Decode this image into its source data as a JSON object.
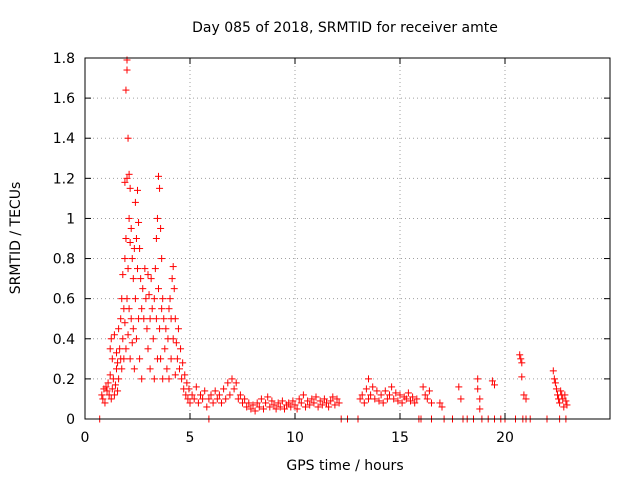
{
  "chart_data": {
    "type": "scatter",
    "title": "Day 085 of 2018, SRMTID for receiver amte",
    "xlabel": "GPS time / hours",
    "ylabel": "SRMTID / TECUs",
    "xlim": [
      0,
      25
    ],
    "ylim": [
      0,
      1.8
    ],
    "xticks": [
      0,
      5,
      10,
      15,
      20
    ],
    "yticks": [
      0,
      0.2,
      0.4,
      0.6,
      0.8,
      1,
      1.2,
      1.4,
      1.6,
      1.8
    ],
    "xtick_labels": [
      "0",
      "5",
      "10",
      "15",
      "20"
    ],
    "ytick_labels": [
      "0",
      "0.2",
      "0.4",
      "0.6",
      "0.8",
      "1",
      "1.2",
      "1.4",
      "1.6",
      "1.8"
    ],
    "grid": true,
    "marker": "+",
    "color": "#ff0000",
    "series": [
      {
        "name": "SRMTID",
        "points": [
          [
            0.7,
            0.0
          ],
          [
            0.8,
            0.12
          ],
          [
            0.85,
            0.1
          ],
          [
            0.9,
            0.15
          ],
          [
            0.95,
            0.08
          ],
          [
            1.0,
            0.16
          ],
          [
            1.05,
            0.14
          ],
          [
            1.1,
            0.18
          ],
          [
            1.15,
            0.12
          ],
          [
            1.2,
            0.22
          ],
          [
            1.25,
            0.1
          ],
          [
            1.3,
            0.15
          ],
          [
            1.35,
            0.2
          ],
          [
            1.4,
            0.12
          ],
          [
            1.45,
            0.17
          ],
          [
            1.5,
            0.25
          ],
          [
            1.55,
            0.14
          ],
          [
            1.2,
            0.35
          ],
          [
            1.25,
            0.4
          ],
          [
            1.3,
            0.3
          ],
          [
            1.4,
            0.42
          ],
          [
            1.5,
            0.33
          ],
          [
            1.55,
            0.28
          ],
          [
            1.6,
            0.45
          ],
          [
            1.6,
            0.2
          ],
          [
            1.65,
            0.35
          ],
          [
            1.7,
            0.5
          ],
          [
            1.7,
            0.3
          ],
          [
            1.75,
            0.6
          ],
          [
            1.75,
            0.25
          ],
          [
            1.8,
            0.72
          ],
          [
            1.8,
            0.4
          ],
          [
            1.85,
            0.55
          ],
          [
            1.85,
            0.3
          ],
          [
            1.9,
            1.18
          ],
          [
            1.9,
            0.8
          ],
          [
            1.9,
            0.48
          ],
          [
            1.95,
            1.64
          ],
          [
            1.95,
            0.9
          ],
          [
            1.95,
            0.35
          ],
          [
            2.0,
            1.79
          ],
          [
            2.0,
            1.74
          ],
          [
            2.0,
            1.2
          ],
          [
            2.0,
            0.6
          ],
          [
            2.05,
            1.4
          ],
          [
            2.05,
            0.75
          ],
          [
            2.05,
            0.42
          ],
          [
            2.1,
            1.22
          ],
          [
            2.1,
            1.0
          ],
          [
            2.1,
            0.55
          ],
          [
            2.15,
            1.15
          ],
          [
            2.15,
            0.88
          ],
          [
            2.15,
            0.3
          ],
          [
            2.2,
            0.95
          ],
          [
            2.2,
            0.5
          ],
          [
            2.25,
            0.8
          ],
          [
            2.25,
            0.38
          ],
          [
            2.3,
            0.7
          ],
          [
            2.3,
            0.45
          ],
          [
            2.35,
            0.85
          ],
          [
            2.35,
            0.25
          ],
          [
            2.4,
            1.08
          ],
          [
            2.4,
            0.6
          ],
          [
            2.45,
            0.9
          ],
          [
            2.45,
            0.4
          ],
          [
            2.5,
            1.14
          ],
          [
            2.5,
            0.75
          ],
          [
            2.55,
            0.98
          ],
          [
            2.55,
            0.5
          ],
          [
            2.6,
            0.85
          ],
          [
            2.6,
            0.3
          ],
          [
            2.65,
            0.7
          ],
          [
            2.7,
            0.55
          ],
          [
            2.7,
            0.2
          ],
          [
            2.75,
            0.65
          ],
          [
            2.8,
            0.5
          ],
          [
            2.85,
            0.75
          ],
          [
            2.9,
            0.6
          ],
          [
            2.95,
            0.45
          ],
          [
            3.0,
            0.72
          ],
          [
            3.0,
            0.35
          ],
          [
            3.05,
            0.62
          ],
          [
            3.1,
            0.5
          ],
          [
            3.1,
            0.25
          ],
          [
            3.15,
            0.7
          ],
          [
            3.2,
            0.55
          ],
          [
            3.25,
            0.4
          ],
          [
            3.3,
            0.6
          ],
          [
            3.3,
            0.2
          ],
          [
            3.35,
            0.75
          ],
          [
            3.4,
            0.9
          ],
          [
            3.4,
            0.5
          ],
          [
            3.45,
            1.0
          ],
          [
            3.45,
            0.3
          ],
          [
            3.5,
            1.21
          ],
          [
            3.5,
            0.65
          ],
          [
            3.55,
            1.15
          ],
          [
            3.55,
            0.45
          ],
          [
            3.6,
            0.95
          ],
          [
            3.6,
            0.3
          ],
          [
            3.65,
            0.8
          ],
          [
            3.65,
            0.55
          ],
          [
            3.7,
            0.6
          ],
          [
            3.7,
            0.2
          ],
          [
            3.75,
            0.5
          ],
          [
            3.8,
            0.35
          ],
          [
            3.85,
            0.45
          ],
          [
            3.9,
            0.25
          ],
          [
            3.95,
            0.4
          ],
          [
            4.0,
            0.55
          ],
          [
            4.0,
            0.2
          ],
          [
            4.05,
            0.6
          ],
          [
            4.1,
            0.5
          ],
          [
            4.1,
            0.3
          ],
          [
            4.15,
            0.7
          ],
          [
            4.2,
            0.76
          ],
          [
            4.2,
            0.4
          ],
          [
            4.25,
            0.65
          ],
          [
            4.3,
            0.5
          ],
          [
            4.3,
            0.22
          ],
          [
            4.35,
            0.38
          ],
          [
            4.4,
            0.3
          ],
          [
            4.45,
            0.45
          ],
          [
            4.5,
            0.25
          ],
          [
            4.55,
            0.35
          ],
          [
            4.6,
            0.2
          ],
          [
            4.65,
            0.28
          ],
          [
            4.7,
            0.15
          ],
          [
            4.75,
            0.22
          ],
          [
            4.8,
            0.12
          ],
          [
            4.85,
            0.18
          ],
          [
            4.9,
            0.1
          ],
          [
            4.95,
            0.15
          ],
          [
            5.0,
            0.08
          ],
          [
            5.1,
            0.12
          ],
          [
            5.2,
            0.1
          ],
          [
            5.3,
            0.16
          ],
          [
            5.4,
            0.08
          ],
          [
            5.5,
            0.12
          ],
          [
            5.6,
            0.1
          ],
          [
            5.7,
            0.14
          ],
          [
            5.8,
            0.06
          ],
          [
            5.9,
            0.0
          ],
          [
            5.9,
            0.1
          ],
          [
            6.0,
            0.12
          ],
          [
            6.1,
            0.08
          ],
          [
            6.2,
            0.14
          ],
          [
            6.3,
            0.1
          ],
          [
            6.4,
            0.12
          ],
          [
            6.5,
            0.08
          ],
          [
            6.6,
            0.15
          ],
          [
            6.7,
            0.1
          ],
          [
            6.8,
            0.18
          ],
          [
            6.9,
            0.12
          ],
          [
            7.0,
            0.2
          ],
          [
            7.1,
            0.15
          ],
          [
            7.2,
            0.18
          ],
          [
            7.3,
            0.1
          ],
          [
            7.4,
            0.12
          ],
          [
            7.5,
            0.08
          ],
          [
            7.6,
            0.1
          ],
          [
            7.7,
            0.06
          ],
          [
            7.8,
            0.08
          ],
          [
            7.9,
            0.05
          ],
          [
            8.0,
            0.07
          ],
          [
            8.1,
            0.04
          ],
          [
            8.2,
            0.08
          ],
          [
            8.3,
            0.06
          ],
          [
            8.4,
            0.1
          ],
          [
            8.5,
            0.05
          ],
          [
            8.6,
            0.08
          ],
          [
            8.7,
            0.11
          ],
          [
            8.8,
            0.06
          ],
          [
            8.9,
            0.09
          ],
          [
            9.0,
            0.07
          ],
          [
            9.1,
            0.05
          ],
          [
            9.2,
            0.08
          ],
          [
            9.3,
            0.06
          ],
          [
            9.4,
            0.09
          ],
          [
            9.5,
            0.05
          ],
          [
            9.6,
            0.07
          ],
          [
            9.7,
            0.08
          ],
          [
            9.8,
            0.06
          ],
          [
            9.9,
            0.09
          ],
          [
            10.0,
            0.07
          ],
          [
            10.1,
            0.05
          ],
          [
            10.2,
            0.1
          ],
          [
            10.3,
            0.08
          ],
          [
            10.4,
            0.12
          ],
          [
            10.5,
            0.06
          ],
          [
            10.6,
            0.09
          ],
          [
            10.7,
            0.07
          ],
          [
            10.8,
            0.1
          ],
          [
            10.9,
            0.08
          ],
          [
            11.0,
            0.11
          ],
          [
            11.1,
            0.06
          ],
          [
            11.2,
            0.09
          ],
          [
            11.3,
            0.07
          ],
          [
            11.4,
            0.1
          ],
          [
            11.5,
            0.08
          ],
          [
            11.6,
            0.06
          ],
          [
            11.7,
            0.09
          ],
          [
            11.8,
            0.11
          ],
          [
            11.9,
            0.07
          ],
          [
            12.0,
            0.1
          ],
          [
            12.1,
            0.08
          ],
          [
            12.2,
            0.0
          ],
          [
            12.5,
            0.0
          ],
          [
            13.0,
            0.0
          ],
          [
            13.1,
            0.1
          ],
          [
            13.2,
            0.12
          ],
          [
            13.3,
            0.08
          ],
          [
            13.4,
            0.15
          ],
          [
            13.5,
            0.1
          ],
          [
            13.5,
            0.2
          ],
          [
            13.6,
            0.12
          ],
          [
            13.7,
            0.16
          ],
          [
            13.8,
            0.1
          ],
          [
            13.9,
            0.14
          ],
          [
            14.0,
            0.09
          ],
          [
            14.1,
            0.12
          ],
          [
            14.2,
            0.08
          ],
          [
            14.3,
            0.14
          ],
          [
            14.4,
            0.1
          ],
          [
            14.5,
            0.12
          ],
          [
            14.6,
            0.16
          ],
          [
            14.7,
            0.1
          ],
          [
            14.8,
            0.13
          ],
          [
            14.9,
            0.09
          ],
          [
            15.0,
            0.12
          ],
          [
            15.1,
            0.08
          ],
          [
            15.2,
            0.11
          ],
          [
            15.3,
            0.1
          ],
          [
            15.4,
            0.13
          ],
          [
            15.5,
            0.09
          ],
          [
            15.6,
            0.11
          ],
          [
            15.7,
            0.08
          ],
          [
            15.8,
            0.1
          ],
          [
            15.9,
            0.0
          ],
          [
            16.0,
            0.0
          ],
          [
            16.1,
            0.16
          ],
          [
            16.2,
            0.12
          ],
          [
            16.3,
            0.1
          ],
          [
            16.4,
            0.14
          ],
          [
            16.5,
            0.08
          ],
          [
            16.5,
            0.0
          ],
          [
            16.9,
            0.08
          ],
          [
            17.0,
            0.06
          ],
          [
            17.1,
            0.0
          ],
          [
            17.5,
            0.0
          ],
          [
            17.8,
            0.16
          ],
          [
            17.9,
            0.1
          ],
          [
            18.0,
            0.0
          ],
          [
            18.2,
            0.0
          ],
          [
            18.5,
            0.0
          ],
          [
            18.7,
            0.2
          ],
          [
            18.7,
            0.15
          ],
          [
            18.8,
            0.1
          ],
          [
            18.8,
            0.05
          ],
          [
            18.9,
            0.0
          ],
          [
            19.2,
            0.0
          ],
          [
            19.4,
            0.19
          ],
          [
            19.5,
            0.17
          ],
          [
            19.5,
            0.0
          ],
          [
            19.8,
            0.0
          ],
          [
            20.0,
            0.0
          ],
          [
            20.5,
            0.0
          ],
          [
            20.7,
            0.32
          ],
          [
            20.75,
            0.3
          ],
          [
            20.8,
            0.28
          ],
          [
            20.8,
            0.21
          ],
          [
            20.85,
            0.0
          ],
          [
            20.9,
            0.12
          ],
          [
            21.0,
            0.1
          ],
          [
            21.0,
            0.0
          ],
          [
            21.2,
            0.0
          ],
          [
            22.0,
            0.0
          ],
          [
            22.3,
            0.24
          ],
          [
            22.35,
            0.2
          ],
          [
            22.4,
            0.18
          ],
          [
            22.45,
            0.15
          ],
          [
            22.5,
            0.12
          ],
          [
            22.55,
            0.1
          ],
          [
            22.6,
            0.08
          ],
          [
            22.65,
            0.14
          ],
          [
            22.7,
            0.12
          ],
          [
            22.75,
            0.1
          ],
          [
            22.8,
            0.06
          ],
          [
            22.85,
            0.12
          ],
          [
            22.9,
            0.09
          ],
          [
            22.95,
            0.07
          ],
          [
            22.6,
            0.0
          ],
          [
            22.9,
            0.0
          ]
        ]
      }
    ]
  }
}
